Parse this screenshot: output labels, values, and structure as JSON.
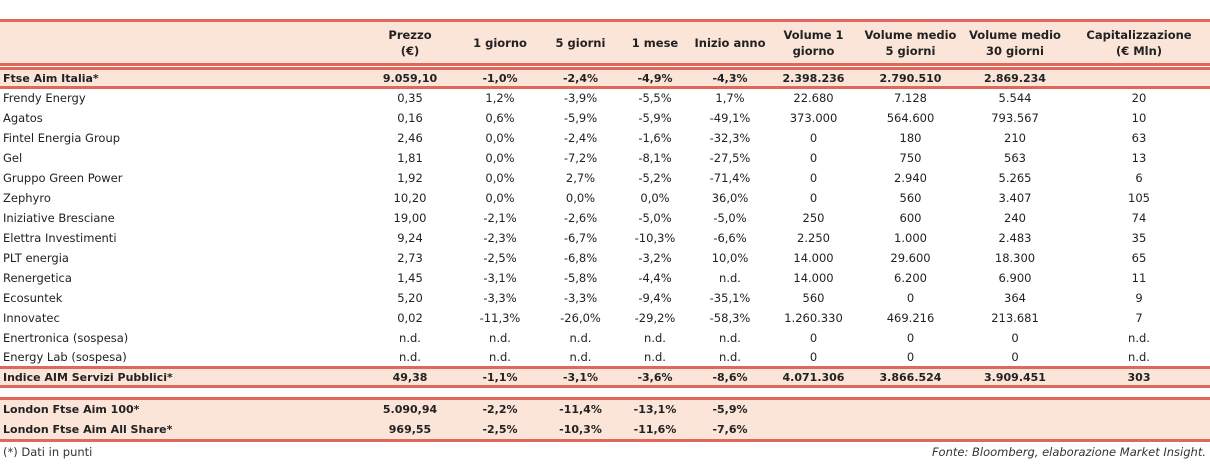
{
  "headers": [
    "",
    "Prezzo\n(€)",
    "1 giorno",
    "5 giorni",
    "1 mese",
    "Inizio anno",
    "Volume 1\ngiorno",
    "Volume medio\n5 giorni",
    "Volume medio\n30 giorni",
    "Capitalizzazione\n(€ Mln)"
  ],
  "index_row": [
    "Ftse Aim Italia*",
    "9.059,10",
    "-1,0%",
    "-2,4%",
    "-4,9%",
    "-4,3%",
    "2.398.236",
    "2.790.510",
    "2.869.234",
    ""
  ],
  "rows": [
    [
      "Frendy Energy",
      "0,35",
      "1,2%",
      "-3,9%",
      "-5,5%",
      "1,7%",
      "22.680",
      "7.128",
      "5.544",
      "20"
    ],
    [
      "Agatos",
      "0,16",
      "0,6%",
      "-5,9%",
      "-5,9%",
      "-49,1%",
      "373.000",
      "564.600",
      "793.567",
      "10"
    ],
    [
      "Fintel Energia Group",
      "2,46",
      "0,0%",
      "-2,4%",
      "-1,6%",
      "-32,3%",
      "0",
      "180",
      "210",
      "63"
    ],
    [
      "Gel",
      "1,81",
      "0,0%",
      "-7,2%",
      "-8,1%",
      "-27,5%",
      "0",
      "750",
      "563",
      "13"
    ],
    [
      "Gruppo Green Power",
      "1,92",
      "0,0%",
      "2,7%",
      "-5,2%",
      "-71,4%",
      "0",
      "2.940",
      "5.265",
      "6"
    ],
    [
      "Zephyro",
      "10,20",
      "0,0%",
      "0,0%",
      "0,0%",
      "36,0%",
      "0",
      "560",
      "3.407",
      "105"
    ],
    [
      "Iniziative Bresciane",
      "19,00",
      "-2,1%",
      "-2,6%",
      "-5,0%",
      "-5,0%",
      "250",
      "600",
      "240",
      "74"
    ],
    [
      "Elettra Investimenti",
      "9,24",
      "-2,3%",
      "-6,7%",
      "-10,3%",
      "-6,6%",
      "2.250",
      "1.000",
      "2.483",
      "35"
    ],
    [
      "PLT energia",
      "2,73",
      "-2,5%",
      "-6,8%",
      "-3,2%",
      "10,0%",
      "14.000",
      "29.600",
      "18.300",
      "65"
    ],
    [
      "Renergetica",
      "1,45",
      "-3,1%",
      "-5,8%",
      "-4,4%",
      "n.d.",
      "14.000",
      "6.200",
      "6.900",
      "11"
    ],
    [
      "Ecosuntek",
      "5,20",
      "-3,3%",
      "-3,3%",
      "-9,4%",
      "-35,1%",
      "560",
      "0",
      "364",
      "9"
    ],
    [
      "Innovatec",
      "0,02",
      "-11,3%",
      "-26,0%",
      "-29,2%",
      "-58,3%",
      "1.260.330",
      "469.216",
      "213.681",
      "7"
    ],
    [
      "Enertronica (sospesa)",
      "n.d.",
      "n.d.",
      "n.d.",
      "n.d.",
      "n.d.",
      "0",
      "0",
      "0",
      "n.d."
    ],
    [
      "Energy Lab (sospesa)",
      "n.d.",
      "n.d.",
      "n.d.",
      "n.d.",
      "n.d.",
      "0",
      "0",
      "0",
      "n.d."
    ]
  ],
  "total_row": [
    "Indice AIM Servizi Pubblici*",
    "49,38",
    "-1,1%",
    "-3,1%",
    "-3,6%",
    "-8,6%",
    "4.071.306",
    "3.866.524",
    "3.909.451",
    "303"
  ],
  "london_rows": [
    [
      "London Ftse Aim 100*",
      "5.090,94",
      "-2,2%",
      "-11,4%",
      "-13,1%",
      "-5,9%",
      "",
      "",
      "",
      ""
    ],
    [
      "London Ftse Aim All Share*",
      "969,55",
      "-2,5%",
      "-10,3%",
      "-11,6%",
      "-7,6%",
      "",
      "",
      "",
      ""
    ]
  ],
  "footer": {
    "note": "(*) Dati in punti",
    "source": "Fonte: Bloomberg, elaborazione Market Insight."
  },
  "colors": {
    "band": "#fbe4d8",
    "line": "#e0675a"
  }
}
